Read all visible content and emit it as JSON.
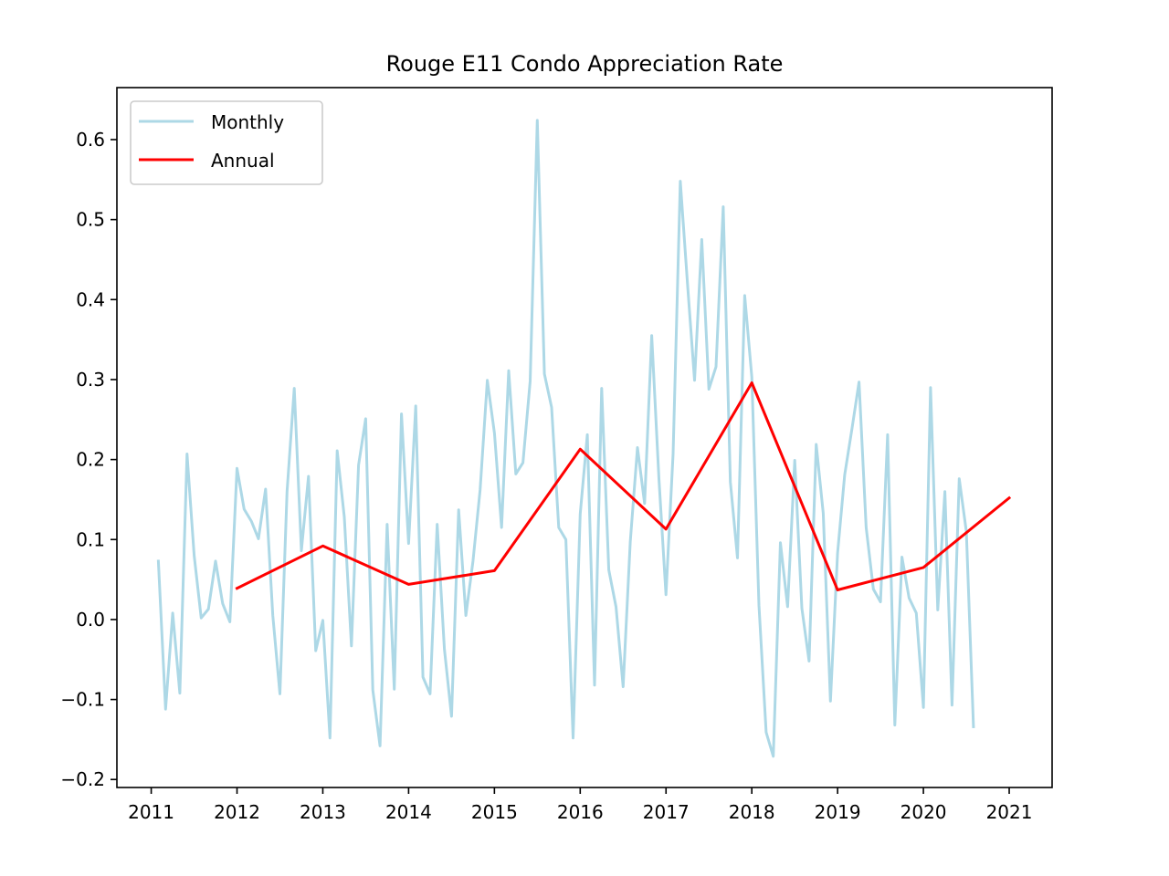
{
  "chart_data": {
    "type": "line",
    "title": "Rouge E11 Condo Appreciation Rate",
    "xlabel": "",
    "ylabel": "",
    "xlim": [
      2010.6,
      2021.5
    ],
    "ylim": [
      -0.21,
      0.665
    ],
    "x_ticks": [
      2011,
      2012,
      2013,
      2014,
      2015,
      2016,
      2017,
      2018,
      2019,
      2020,
      2021
    ],
    "x_tick_labels": [
      "2011",
      "2012",
      "2013",
      "2014",
      "2015",
      "2016",
      "2017",
      "2018",
      "2019",
      "2020",
      "2021"
    ],
    "y_ticks": [
      -0.2,
      -0.1,
      0.0,
      0.1,
      0.2,
      0.3,
      0.4,
      0.5,
      0.6
    ],
    "y_tick_labels": [
      "−0.2",
      "−0.1",
      "0.0",
      "0.1",
      "0.2",
      "0.3",
      "0.4",
      "0.5",
      "0.6"
    ],
    "grid": false,
    "legend_position": "top-left",
    "series": [
      {
        "name": "Monthly",
        "color": "#add8e6",
        "x": [
          2011.083,
          2011.167,
          2011.25,
          2011.333,
          2011.417,
          2011.5,
          2011.583,
          2011.667,
          2011.75,
          2011.833,
          2011.917,
          2012.0,
          2012.083,
          2012.167,
          2012.25,
          2012.333,
          2012.417,
          2012.5,
          2012.583,
          2012.667,
          2012.75,
          2012.833,
          2012.917,
          2013.0,
          2013.083,
          2013.167,
          2013.25,
          2013.333,
          2013.417,
          2013.5,
          2013.583,
          2013.667,
          2013.75,
          2013.833,
          2013.917,
          2014.0,
          2014.083,
          2014.167,
          2014.25,
          2014.333,
          2014.417,
          2014.5,
          2014.583,
          2014.667,
          2014.75,
          2014.833,
          2014.917,
          2015.0,
          2015.083,
          2015.167,
          2015.25,
          2015.333,
          2015.417,
          2015.5,
          2015.583,
          2015.667,
          2015.75,
          2015.833,
          2015.917,
          2016.0,
          2016.083,
          2016.167,
          2016.25,
          2016.333,
          2016.417,
          2016.5,
          2016.583,
          2016.667,
          2016.75,
          2016.833,
          2016.917,
          2017.0,
          2017.083,
          2017.167,
          2017.25,
          2017.333,
          2017.417,
          2017.5,
          2017.583,
          2017.667,
          2017.75,
          2017.833,
          2017.917,
          2018.0,
          2018.083,
          2018.167,
          2018.25,
          2018.333,
          2018.417,
          2018.5,
          2018.583,
          2018.667,
          2018.75,
          2018.833,
          2018.917,
          2019.0,
          2019.083,
          2019.167,
          2019.25,
          2019.333,
          2019.417,
          2019.5,
          2019.583,
          2019.667,
          2019.75,
          2019.833,
          2019.917,
          2020.0,
          2020.083,
          2020.167,
          2020.25,
          2020.333,
          2020.417,
          2020.5,
          2020.583
        ],
        "values": [
          0.073,
          -0.112,
          0.008,
          -0.092,
          0.207,
          0.08,
          0.002,
          0.013,
          0.073,
          0.02,
          -0.003,
          0.189,
          0.138,
          0.123,
          0.101,
          0.163,
          0.005,
          -0.093,
          0.16,
          0.289,
          0.086,
          0.179,
          -0.039,
          -0.001,
          -0.148,
          0.211,
          0.128,
          -0.033,
          0.193,
          0.251,
          -0.088,
          -0.158,
          0.119,
          -0.087,
          0.257,
          0.095,
          0.267,
          -0.072,
          -0.093,
          0.119,
          -0.037,
          -0.121,
          0.137,
          0.005,
          0.073,
          0.162,
          0.299,
          0.233,
          0.115,
          0.311,
          0.182,
          0.196,
          0.298,
          0.624,
          0.307,
          0.265,
          0.115,
          0.1,
          -0.148,
          0.132,
          0.231,
          -0.082,
          0.289,
          0.062,
          0.016,
          -0.084,
          0.097,
          0.215,
          0.145,
          0.355,
          0.176,
          0.031,
          0.207,
          0.548,
          0.421,
          0.299,
          0.475,
          0.288,
          0.316,
          0.516,
          0.172,
          0.077,
          0.405,
          0.303,
          0.018,
          -0.141,
          -0.171,
          0.096,
          0.016,
          0.199,
          0.014,
          -0.052,
          0.219,
          0.133,
          -0.102,
          0.083,
          0.181,
          0.238,
          0.297,
          0.115,
          0.038,
          0.022,
          0.231,
          -0.132,
          0.078,
          0.027,
          0.008,
          -0.11,
          0.29,
          0.012,
          0.16,
          -0.107,
          0.176,
          0.11,
          -0.134
        ]
      },
      {
        "name": "Annual",
        "color": "#ff0000",
        "x": [
          2012,
          2013,
          2014,
          2015,
          2016,
          2017,
          2018,
          2019,
          2020,
          2021
        ],
        "values": [
          0.039,
          0.092,
          0.044,
          0.061,
          0.213,
          0.113,
          0.296,
          0.037,
          0.065,
          0.152
        ]
      }
    ]
  }
}
